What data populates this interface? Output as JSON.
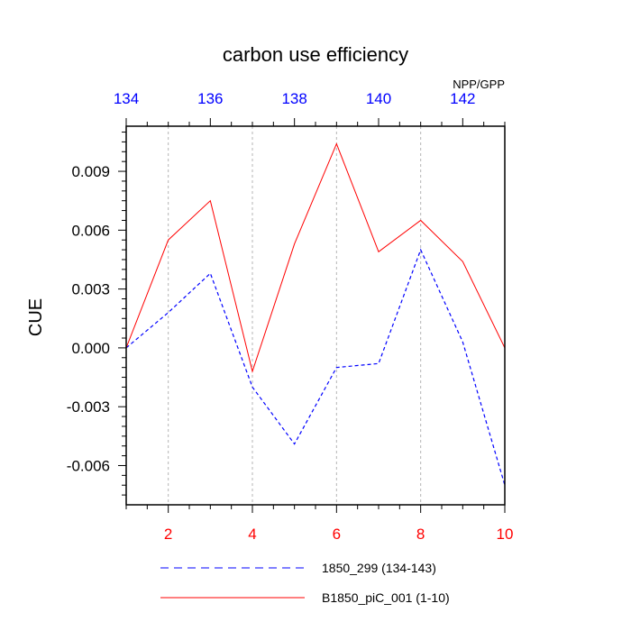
{
  "chart_data": {
    "type": "line",
    "title": "carbon use efficiency",
    "subtitle": "NPP/GPP",
    "ylabel": "CUE",
    "xlabel": "",
    "ylim": [
      -0.008,
      0.0113
    ],
    "y_ticks": [
      "0.009",
      "0.006",
      "0.003",
      "0.000",
      "-0.003",
      "-0.006"
    ],
    "y_tick_values": [
      0.009,
      0.006,
      0.003,
      0.0,
      -0.003,
      -0.006
    ],
    "bottom_axis": {
      "color": "#ff0000",
      "range": [
        1,
        10
      ],
      "ticks": [
        2,
        4,
        6,
        8,
        10
      ]
    },
    "top_axis": {
      "color": "#0000ff",
      "range": [
        134,
        143
      ],
      "ticks": [
        134,
        136,
        138,
        140,
        142
      ]
    },
    "grid": "vertical dashed at bottom-axis ticks",
    "series": [
      {
        "name": "1850_299 (134-143)",
        "color": "#0000ff",
        "style": "dashed",
        "axis": "top",
        "x": [
          134,
          135,
          136,
          137,
          138,
          139,
          140,
          141,
          142,
          143
        ],
        "values": [
          0.0,
          0.0018,
          0.0038,
          -0.002,
          -0.0049,
          -0.001,
          -0.0008,
          0.005,
          0.0003,
          -0.007
        ]
      },
      {
        "name": "B1850_piC_001 (1-10)",
        "color": "#ff0000",
        "style": "solid",
        "axis": "bottom",
        "x": [
          1,
          2,
          3,
          4,
          5,
          6,
          7,
          8,
          9,
          10
        ],
        "values": [
          0.0,
          0.0055,
          0.0075,
          -0.0012,
          0.0053,
          0.0104,
          0.0049,
          0.0065,
          0.0044,
          0.0
        ]
      }
    ],
    "legend_position": "bottom"
  }
}
